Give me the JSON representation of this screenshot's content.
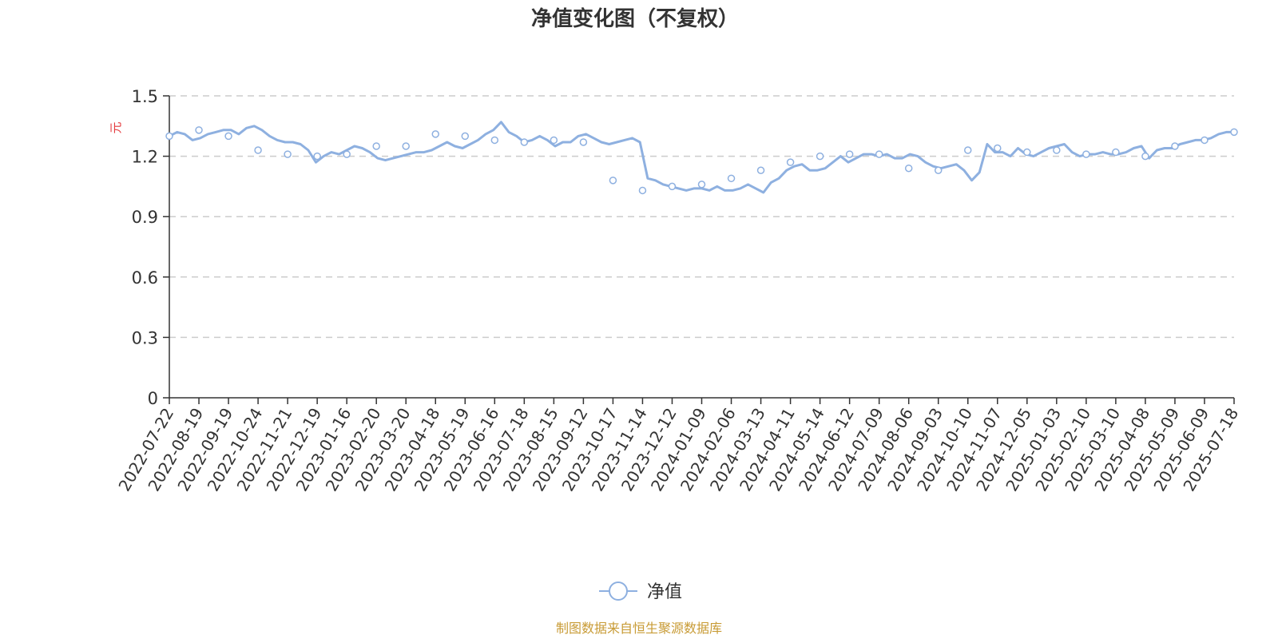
{
  "chart_data": {
    "type": "line",
    "title": "净值变化图（不复权）",
    "ylabel": "元",
    "ylim": [
      0,
      1.5
    ],
    "yticks": [
      "0",
      "0.3",
      "0.6",
      "0.9",
      "1.2",
      "1.5"
    ],
    "grid": true,
    "legend_position": "bottom-center",
    "x_tick_labels": [
      "2022-07-22",
      "2022-08-19",
      "2022-09-19",
      "2022-10-24",
      "2022-11-21",
      "2022-12-19",
      "2023-01-16",
      "2023-02-20",
      "2023-03-20",
      "2023-04-18",
      "2023-05-19",
      "2023-06-16",
      "2023-07-18",
      "2023-08-15",
      "2023-09-12",
      "2023-10-17",
      "2023-11-14",
      "2023-12-12",
      "2024-01-09",
      "2024-02-06",
      "2024-03-13",
      "2024-04-11",
      "2024-05-14",
      "2024-06-12",
      "2024-07-09",
      "2024-08-06",
      "2024-09-03",
      "2024-10-10",
      "2024-11-07",
      "2024-12-05",
      "2025-01-03",
      "2025-02-10",
      "2025-03-10",
      "2025-04-08",
      "2025-05-09",
      "2025-06-09",
      "2025-07-18"
    ],
    "series": [
      {
        "name": "净值",
        "color": "#8eb0e0",
        "marker_dates": [
          "2022-07-22",
          "2022-08-19",
          "2022-09-19",
          "2022-10-24",
          "2022-11-21",
          "2022-12-19",
          "2023-01-16",
          "2023-02-20",
          "2023-03-20",
          "2023-04-18",
          "2023-05-19",
          "2023-06-16",
          "2023-07-18",
          "2023-08-15",
          "2023-09-12",
          "2023-10-17",
          "2023-11-14",
          "2023-12-12",
          "2024-01-09",
          "2024-02-06",
          "2024-03-13",
          "2024-04-11",
          "2024-05-14",
          "2024-06-12",
          "2024-07-09",
          "2024-08-06",
          "2024-09-03",
          "2024-10-10",
          "2024-11-07",
          "2024-12-05",
          "2025-01-03",
          "2025-02-10",
          "2025-03-10",
          "2025-04-08",
          "2025-05-09",
          "2025-06-09",
          "2025-07-18"
        ],
        "marker_values": [
          1.3,
          1.33,
          1.3,
          1.23,
          1.21,
          1.2,
          1.21,
          1.25,
          1.25,
          1.31,
          1.3,
          1.28,
          1.27,
          1.28,
          1.27,
          1.08,
          1.03,
          1.05,
          1.06,
          1.09,
          1.13,
          1.17,
          1.2,
          1.21,
          1.21,
          1.14,
          1.13,
          1.23,
          1.24,
          1.22,
          1.23,
          1.21,
          1.22,
          1.2,
          1.25,
          1.28,
          1.32
        ],
        "line_values": [
          1.3,
          1.32,
          1.31,
          1.28,
          1.29,
          1.31,
          1.32,
          1.33,
          1.33,
          1.31,
          1.34,
          1.35,
          1.33,
          1.3,
          1.28,
          1.27,
          1.27,
          1.26,
          1.23,
          1.17,
          1.2,
          1.22,
          1.21,
          1.23,
          1.25,
          1.24,
          1.22,
          1.19,
          1.18,
          1.19,
          1.2,
          1.21,
          1.22,
          1.22,
          1.23,
          1.25,
          1.27,
          1.25,
          1.24,
          1.26,
          1.28,
          1.31,
          1.33,
          1.37,
          1.32,
          1.3,
          1.27,
          1.28,
          1.3,
          1.28,
          1.25,
          1.27,
          1.27,
          1.3,
          1.31,
          1.29,
          1.27,
          1.26,
          1.27,
          1.28,
          1.29,
          1.27,
          1.09,
          1.08,
          1.06,
          1.05,
          1.04,
          1.03,
          1.04,
          1.04,
          1.03,
          1.05,
          1.03,
          1.03,
          1.04,
          1.06,
          1.04,
          1.02,
          1.07,
          1.09,
          1.13,
          1.15,
          1.16,
          1.13,
          1.13,
          1.14,
          1.17,
          1.2,
          1.17,
          1.19,
          1.21,
          1.21,
          1.2,
          1.21,
          1.19,
          1.19,
          1.21,
          1.2,
          1.17,
          1.15,
          1.14,
          1.15,
          1.16,
          1.13,
          1.08,
          1.12,
          1.26,
          1.22,
          1.22,
          1.2,
          1.24,
          1.21,
          1.2,
          1.22,
          1.24,
          1.25,
          1.26,
          1.22,
          1.2,
          1.21,
          1.21,
          1.22,
          1.21,
          1.21,
          1.22,
          1.24,
          1.25,
          1.19,
          1.23,
          1.24,
          1.24,
          1.26,
          1.27,
          1.28,
          1.28,
          1.29,
          1.31,
          1.32,
          1.32
        ]
      }
    ],
    "source": "制图数据来自恒生聚源数据库"
  }
}
